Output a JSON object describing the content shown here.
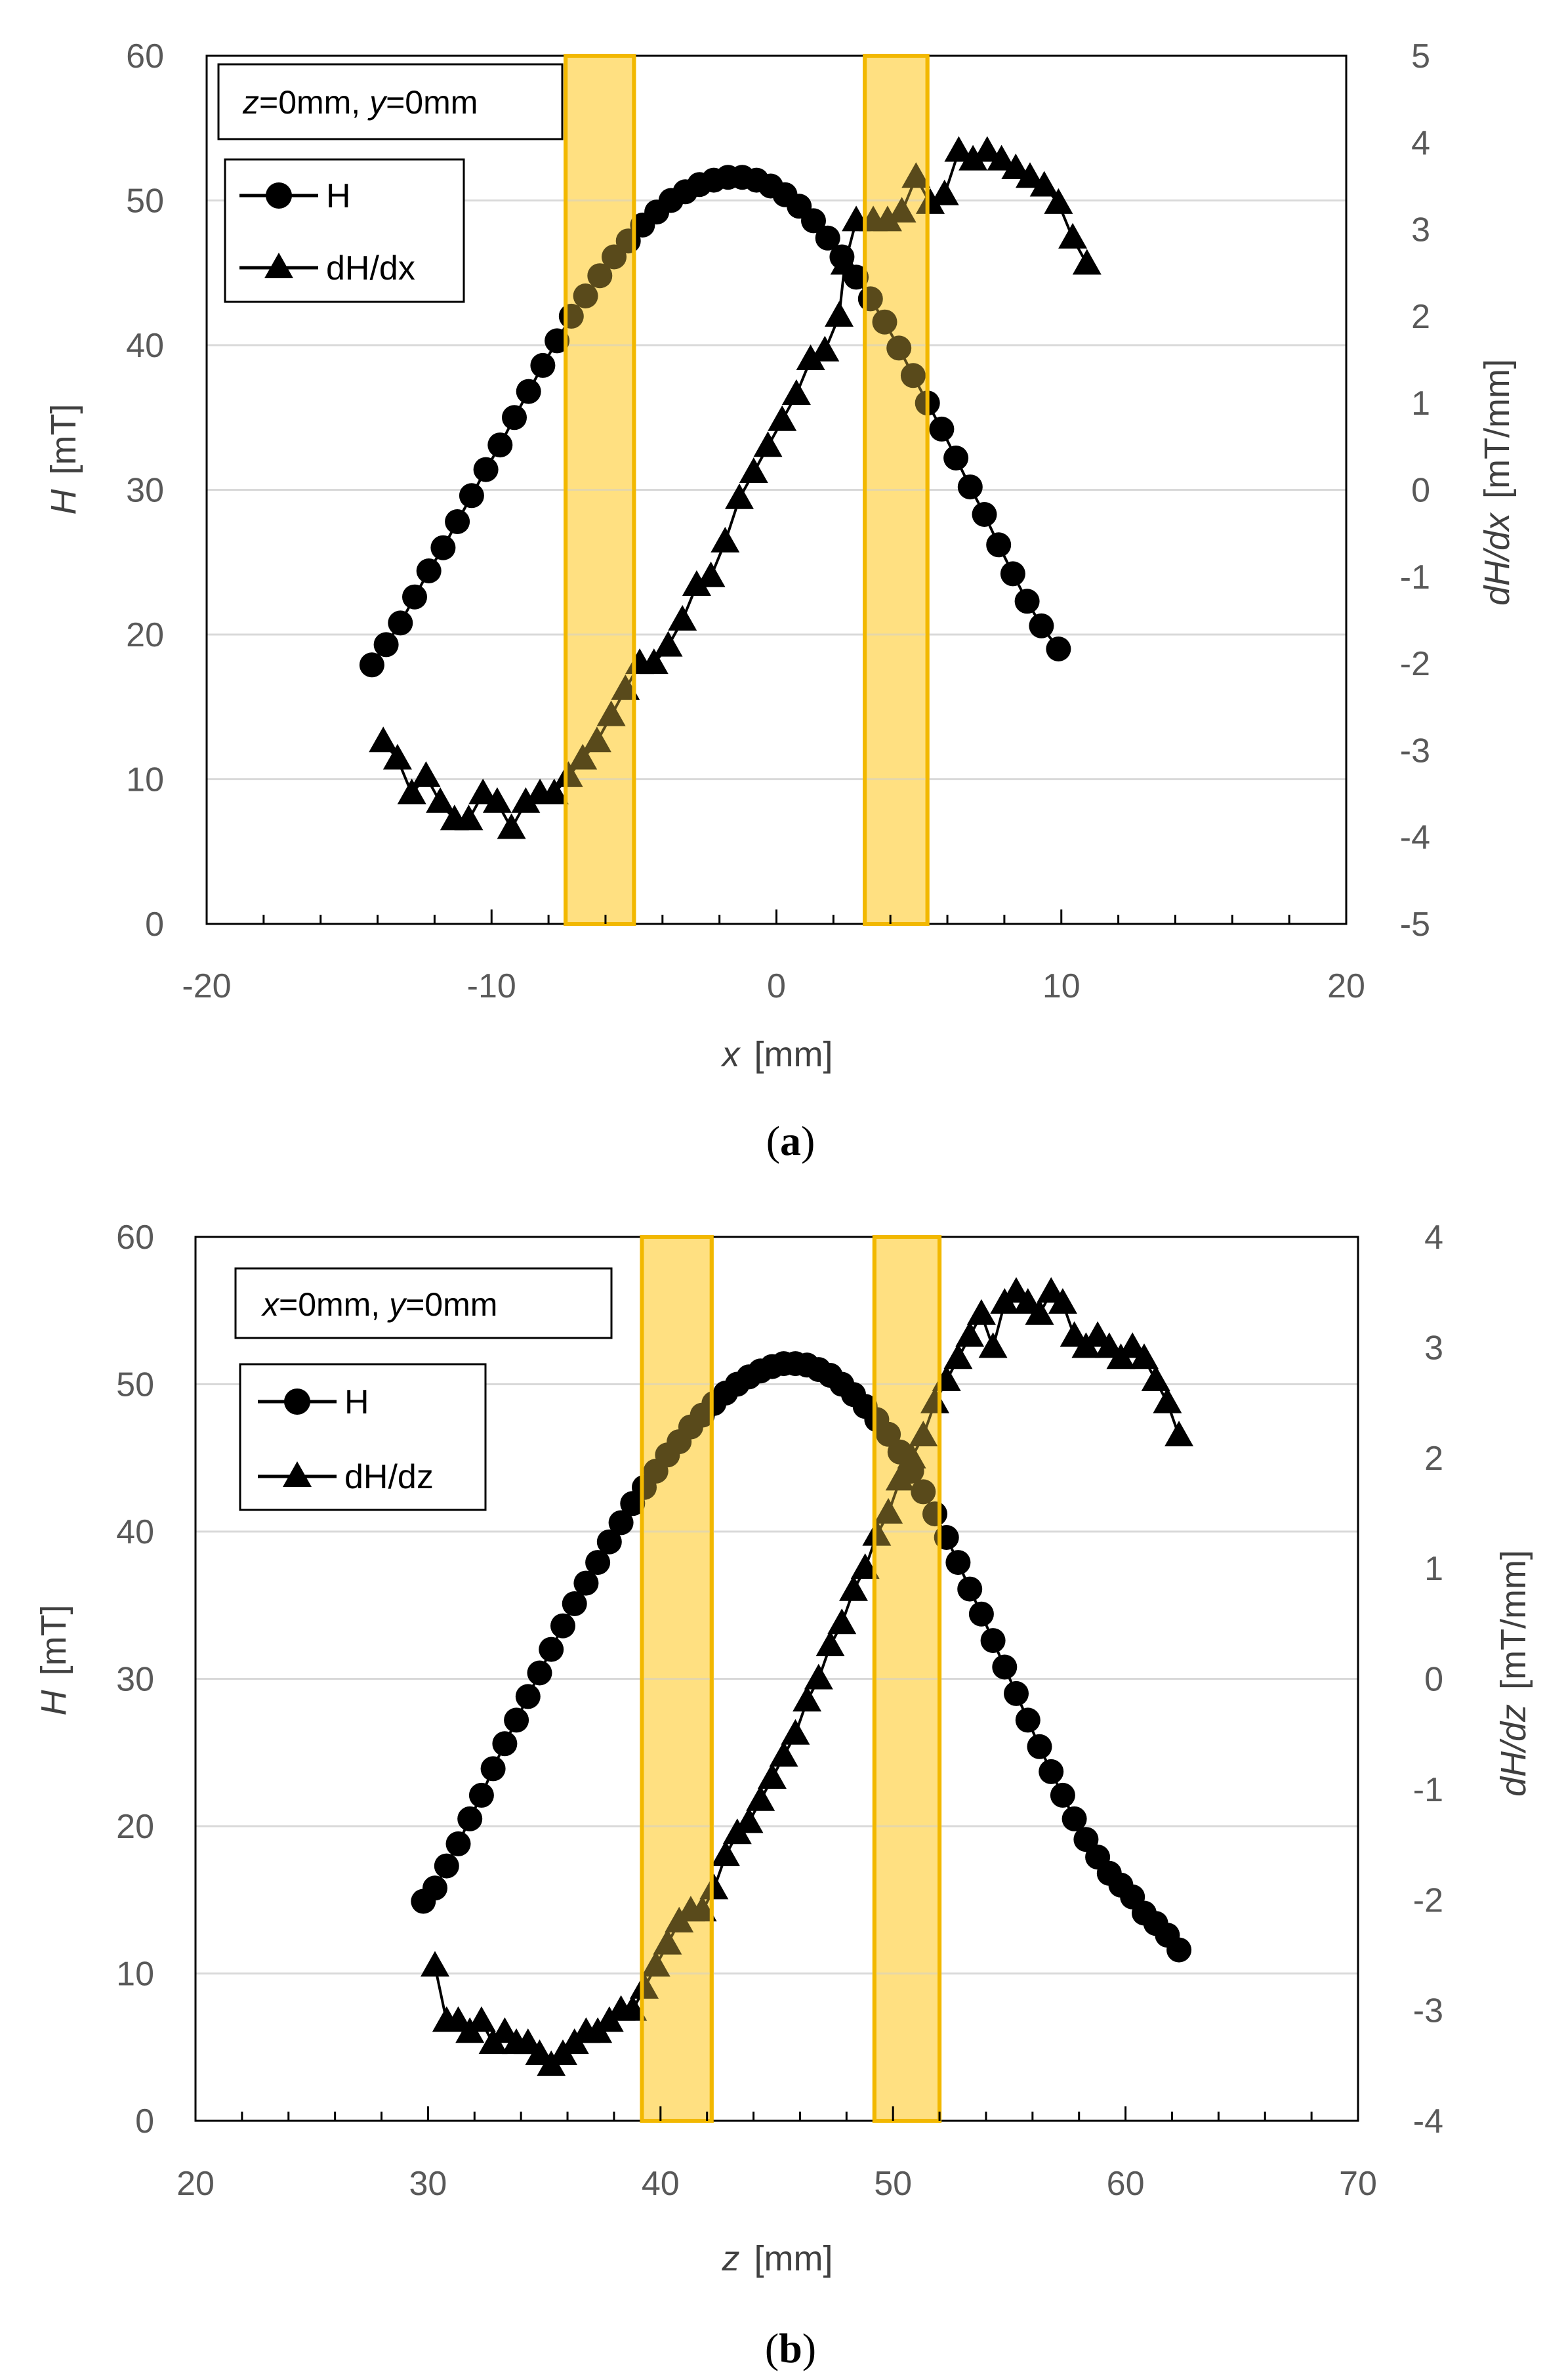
{
  "chart_data": [
    {
      "type": "scatter",
      "panel_label": "a",
      "annotation": {
        "var1": "z",
        "val1": "=0mm, ",
        "var2": "y",
        "val2": "=0mm"
      },
      "xlabel": {
        "var": "x",
        "unit": "[mm]"
      },
      "ylabel": {
        "var": "H",
        "unit": "[mT]"
      },
      "y2label": {
        "var": "dH/dx",
        "unit": "[mT/mm]"
      },
      "xlim": [
        -20,
        20
      ],
      "xticks": [
        -20,
        -10,
        0,
        10,
        20
      ],
      "xtick_labels": [
        "-20",
        "-10",
        "0",
        "10",
        "20"
      ],
      "ylim": [
        0,
        60
      ],
      "yticks": [
        0,
        10,
        20,
        30,
        40,
        50,
        60
      ],
      "ytick_labels": [
        "0",
        "10",
        "20",
        "30",
        "40",
        "50",
        "60"
      ],
      "y2lim": [
        -5,
        5
      ],
      "y2ticks": [
        -5,
        -4,
        -3,
        -2,
        -1,
        0,
        1,
        2,
        3,
        4,
        5
      ],
      "y2tick_labels": [
        "-5",
        "-4",
        "-3",
        "-2",
        "-1",
        "0",
        "1",
        "2",
        "3",
        "4",
        "5"
      ],
      "grid": "horizontal",
      "legend_position": "top-left",
      "highlight_bands": [
        [
          -7.4,
          -5.0
        ],
        [
          3.1,
          5.3
        ]
      ],
      "series": [
        {
          "name": "H",
          "label": "H",
          "axis": "left",
          "marker": "circle",
          "x": [
            -14.2,
            -13.7,
            -13.2,
            -12.7,
            -12.2,
            -11.7,
            -11.2,
            -10.7,
            -10.2,
            -9.7,
            -9.2,
            -8.7,
            -8.2,
            -7.7,
            -7.2,
            -6.7,
            -6.2,
            -5.7,
            -5.2,
            -4.7,
            -4.2,
            -3.7,
            -3.2,
            -2.7,
            -2.2,
            -1.7,
            -1.2,
            -0.7,
            -0.2,
            0.3,
            0.8,
            1.3,
            1.8,
            2.3,
            2.8,
            3.3,
            3.8,
            4.3,
            4.8,
            5.3,
            5.8,
            6.3,
            6.8,
            7.3,
            7.8,
            8.3,
            8.8,
            9.3,
            9.9
          ],
          "values": [
            17.9,
            19.3,
            20.8,
            22.6,
            24.4,
            26.0,
            27.8,
            29.6,
            31.4,
            33.1,
            35.0,
            36.8,
            38.6,
            40.3,
            42.0,
            43.4,
            44.8,
            46.1,
            47.2,
            48.3,
            49.2,
            50.0,
            50.6,
            51.1,
            51.4,
            51.6,
            51.6,
            51.4,
            51.0,
            50.4,
            49.6,
            48.6,
            47.4,
            46.1,
            44.7,
            43.2,
            41.6,
            39.8,
            37.9,
            36.0,
            34.2,
            32.2,
            30.2,
            28.3,
            26.2,
            24.2,
            22.3,
            20.6,
            19.0
          ]
        },
        {
          "name": "dH/dx",
          "label": "dH/dx",
          "axis": "right",
          "marker": "triangle",
          "x": [
            -13.8,
            -13.3,
            -12.8,
            -12.3,
            -11.8,
            -11.3,
            -10.8,
            -10.3,
            -9.8,
            -9.3,
            -8.8,
            -8.3,
            -7.8,
            -7.3,
            -6.8,
            -6.3,
            -5.8,
            -5.3,
            -4.8,
            -4.3,
            -3.8,
            -3.3,
            -2.8,
            -2.3,
            -1.8,
            -1.3,
            -0.8,
            -0.3,
            0.2,
            0.7,
            1.2,
            1.7,
            2.2,
            2.4,
            2.8,
            3.4,
            3.9,
            4.4,
            4.9,
            5.4,
            5.9,
            6.4,
            6.9,
            7.4,
            7.9,
            8.4,
            8.9,
            9.4,
            9.9,
            10.4,
            10.9
          ],
          "values": [
            -2.9,
            -3.1,
            -3.5,
            -3.3,
            -3.6,
            -3.8,
            -3.8,
            -3.5,
            -3.6,
            -3.9,
            -3.6,
            -3.5,
            -3.5,
            -3.3,
            -3.1,
            -2.9,
            -2.6,
            -2.3,
            -2.0,
            -2.0,
            -1.8,
            -1.5,
            -1.1,
            -1.0,
            -0.6,
            -0.1,
            0.2,
            0.5,
            0.8,
            1.1,
            1.5,
            1.6,
            2.0,
            2.6,
            3.1,
            3.1,
            3.1,
            3.2,
            3.6,
            3.3,
            3.4,
            3.9,
            3.8,
            3.9,
            3.8,
            3.7,
            3.6,
            3.5,
            3.3,
            2.9,
            2.6
          ]
        }
      ]
    },
    {
      "type": "scatter",
      "panel_label": "b",
      "annotation": {
        "var1": "x",
        "val1": "=0mm, ",
        "var2": "y",
        "val2": "=0mm"
      },
      "xlabel": {
        "var": "z",
        "unit": "[mm]"
      },
      "ylabel": {
        "var": "H",
        "unit": "[mT]"
      },
      "y2label": {
        "var": "dH/dz",
        "unit": "[mT/mm]"
      },
      "xlim": [
        20,
        70
      ],
      "xticks": [
        20,
        30,
        40,
        50,
        60,
        70
      ],
      "xtick_labels": [
        "20",
        "30",
        "40",
        "50",
        "60",
        "70"
      ],
      "ylim": [
        0,
        60
      ],
      "yticks": [
        0,
        10,
        20,
        30,
        40,
        50,
        60
      ],
      "ytick_labels": [
        "0",
        "10",
        "20",
        "30",
        "40",
        "50",
        "60"
      ],
      "y2lim": [
        -4,
        4
      ],
      "y2ticks": [
        -4,
        -3,
        -2,
        -1,
        0,
        1,
        2,
        3,
        4
      ],
      "y2tick_labels": [
        "-4",
        "-3",
        "-2",
        "-1",
        "0",
        "1",
        "2",
        "3",
        "4"
      ],
      "grid": "horizontal",
      "legend_position": "top-left",
      "highlight_bands": [
        [
          39.2,
          42.2
        ],
        [
          49.2,
          52.0
        ]
      ],
      "series": [
        {
          "name": "H",
          "label": "H",
          "axis": "left",
          "marker": "circle",
          "x": [
            29.8,
            30.3,
            30.8,
            31.3,
            31.8,
            32.3,
            32.8,
            33.3,
            33.8,
            34.3,
            34.8,
            35.3,
            35.8,
            36.3,
            36.8,
            37.3,
            37.8,
            38.3,
            38.8,
            39.3,
            39.8,
            40.3,
            40.8,
            41.3,
            41.8,
            42.3,
            42.8,
            43.3,
            43.8,
            44.3,
            44.8,
            45.3,
            45.8,
            46.3,
            46.8,
            47.3,
            47.8,
            48.3,
            48.8,
            49.3,
            49.8,
            50.3,
            50.8,
            51.3,
            51.8,
            52.3,
            52.8,
            53.3,
            53.8,
            54.3,
            54.8,
            55.3,
            55.8,
            56.3,
            56.8,
            57.3,
            57.8,
            58.3,
            58.8,
            59.3,
            59.8,
            60.3,
            60.8,
            61.3,
            61.8,
            62.3
          ],
          "values": [
            14.9,
            15.8,
            17.3,
            18.8,
            20.5,
            22.1,
            23.9,
            25.6,
            27.2,
            28.8,
            30.4,
            32.0,
            33.6,
            35.1,
            36.5,
            37.9,
            39.3,
            40.6,
            41.9,
            43.0,
            44.1,
            45.2,
            46.1,
            47.1,
            47.9,
            48.7,
            49.4,
            50.0,
            50.5,
            50.9,
            51.2,
            51.4,
            51.4,
            51.3,
            51.0,
            50.6,
            50.0,
            49.3,
            48.5,
            47.6,
            46.6,
            45.4,
            44.1,
            42.7,
            41.2,
            39.6,
            37.9,
            36.1,
            34.4,
            32.6,
            30.8,
            29.0,
            27.2,
            25.4,
            23.7,
            22.1,
            20.5,
            19.1,
            17.9,
            16.8,
            16.0,
            15.2,
            14.1,
            13.4,
            12.6,
            11.6
          ]
        },
        {
          "name": "dH/dz",
          "label": "dH/dz",
          "axis": "right",
          "marker": "triangle",
          "x": [
            30.3,
            30.8,
            31.3,
            31.8,
            32.3,
            32.8,
            33.3,
            33.8,
            34.3,
            34.8,
            35.3,
            35.8,
            36.3,
            36.8,
            37.3,
            37.8,
            38.3,
            38.8,
            39.3,
            39.8,
            40.3,
            40.8,
            41.3,
            41.8,
            42.3,
            42.8,
            43.3,
            43.8,
            44.3,
            44.8,
            45.3,
            45.8,
            46.3,
            46.8,
            47.3,
            47.8,
            48.3,
            48.8,
            49.3,
            49.8,
            50.3,
            50.8,
            51.3,
            51.8,
            52.3,
            52.8,
            53.3,
            53.8,
            54.3,
            54.8,
            55.3,
            55.8,
            56.3,
            56.8,
            57.3,
            57.8,
            58.3,
            58.8,
            59.3,
            59.8,
            60.3,
            60.8,
            61.3,
            61.8,
            62.3
          ],
          "values": [
            -2.6,
            -3.1,
            -3.1,
            -3.2,
            -3.1,
            -3.3,
            -3.2,
            -3.3,
            -3.3,
            -3.4,
            -3.5,
            -3.4,
            -3.3,
            -3.2,
            -3.2,
            -3.1,
            -3.0,
            -3.0,
            -2.8,
            -2.6,
            -2.4,
            -2.2,
            -2.1,
            -2.1,
            -1.9,
            -1.6,
            -1.4,
            -1.3,
            -1.1,
            -0.9,
            -0.7,
            -0.5,
            -0.2,
            0.0,
            0.3,
            0.5,
            0.8,
            1.0,
            1.3,
            1.5,
            1.8,
            2.0,
            2.2,
            2.5,
            2.7,
            2.9,
            3.1,
            3.3,
            3.0,
            3.4,
            3.5,
            3.4,
            3.3,
            3.5,
            3.4,
            3.1,
            3.0,
            3.1,
            3.0,
            2.9,
            3.0,
            2.9,
            2.7,
            2.5,
            2.2
          ]
        }
      ]
    }
  ]
}
